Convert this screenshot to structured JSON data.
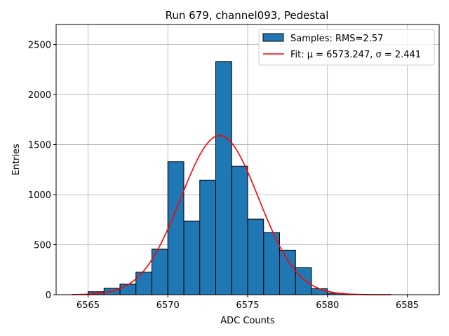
{
  "chart_data": {
    "type": "bar",
    "title": "Run 679, channel093, Pedestal",
    "xlabel": "ADC Counts",
    "ylabel": "Entries",
    "xlim": [
      6563.0,
      6587.0
    ],
    "ylim": [
      0,
      2700
    ],
    "xticks": [
      6565,
      6570,
      6575,
      6580,
      6585
    ],
    "yticks": [
      0,
      500,
      1000,
      1500,
      2000,
      2500
    ],
    "grid": true,
    "legend_position": "top-right",
    "bins": [
      {
        "x0": 6565.0,
        "x1": 6566.0,
        "count": 30
      },
      {
        "x0": 6566.0,
        "x1": 6567.0,
        "count": 65
      },
      {
        "x0": 6567.0,
        "x1": 6568.0,
        "count": 105
      },
      {
        "x0": 6568.0,
        "x1": 6569.0,
        "count": 225
      },
      {
        "x0": 6569.0,
        "x1": 6570.0,
        "count": 455
      },
      {
        "x0": 6570.0,
        "x1": 6571.0,
        "count": 1330
      },
      {
        "x0": 6571.0,
        "x1": 6572.0,
        "count": 735
      },
      {
        "x0": 6572.0,
        "x1": 6573.0,
        "count": 1145
      },
      {
        "x0": 6573.0,
        "x1": 6574.0,
        "count": 2330
      },
      {
        "x0": 6574.0,
        "x1": 6575.0,
        "count": 1285
      },
      {
        "x0": 6575.0,
        "x1": 6576.0,
        "count": 755
      },
      {
        "x0": 6576.0,
        "x1": 6577.0,
        "count": 620
      },
      {
        "x0": 6577.0,
        "x1": 6578.0,
        "count": 445
      },
      {
        "x0": 6578.0,
        "x1": 6579.0,
        "count": 270
      },
      {
        "x0": 6579.0,
        "x1": 6580.0,
        "count": 60
      },
      {
        "x0": 6580.0,
        "x1": 6581.0,
        "count": 15
      }
    ],
    "fit": {
      "mu": 6573.247,
      "sigma": 2.441,
      "amplitude": 1590,
      "x_range": [
        6564.0,
        6584.0
      ]
    },
    "series": [
      {
        "name": "Samples: RMS=2.57",
        "color": "#1f77b4"
      },
      {
        "name": "Fit: μ = 6573.247, σ = 2.441",
        "color": "#ff0000"
      }
    ]
  },
  "colors": {
    "bar_fill": "#1f77b4",
    "bar_edge": "#000000",
    "fit_line": "#ff0000",
    "grid": "#b0b0b0"
  }
}
